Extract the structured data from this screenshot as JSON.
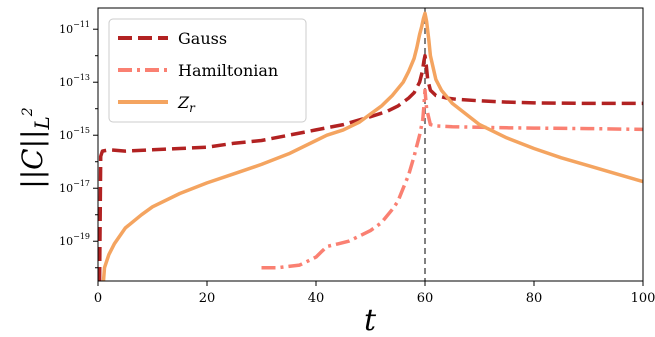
{
  "chart_data": {
    "type": "line",
    "xlabel": "t",
    "ylabel": "||C||",
    "ylabel_subscript": "L",
    "ylabel_superscript": "2",
    "xlim": [
      0,
      100
    ],
    "ylim_log10": [
      -20.5,
      -10.2
    ],
    "y_scale": "log",
    "x_ticks": [
      0,
      20,
      40,
      60,
      80,
      100
    ],
    "x_tick_labels": [
      "0",
      "20",
      "40",
      "60",
      "80",
      "100"
    ],
    "y_ticks_log10": [
      -19,
      -17,
      -15,
      -13,
      -11
    ],
    "y_tick_labels": [
      {
        "base": "10",
        "exp": "−19"
      },
      {
        "base": "10",
        "exp": "−17"
      },
      {
        "base": "10",
        "exp": "−15"
      },
      {
        "base": "10",
        "exp": "−13"
      },
      {
        "base": "10",
        "exp": "−11"
      }
    ],
    "vline": {
      "x": 60,
      "color": "#808080",
      "style": "dashed"
    },
    "legend_placement": "top-left",
    "series": [
      {
        "name": "Gauss",
        "color": "#b22222",
        "style": "dashed",
        "points": [
          [
            0.3,
            -20.5
          ],
          [
            0.4,
            -18.0
          ],
          [
            0.5,
            -15.8
          ],
          [
            0.8,
            -15.6
          ],
          [
            2,
            -15.55
          ],
          [
            5,
            -15.6
          ],
          [
            10,
            -15.55
          ],
          [
            15,
            -15.5
          ],
          [
            20,
            -15.45
          ],
          [
            25,
            -15.3
          ],
          [
            30,
            -15.2
          ],
          [
            35,
            -15.0
          ],
          [
            40,
            -14.8
          ],
          [
            45,
            -14.6
          ],
          [
            50,
            -14.3
          ],
          [
            53,
            -14.1
          ],
          [
            55,
            -13.9
          ],
          [
            57,
            -13.6
          ],
          [
            58,
            -13.4
          ],
          [
            59,
            -13.0
          ],
          [
            59.5,
            -12.6
          ],
          [
            59.8,
            -12.2
          ],
          [
            60,
            -12.0
          ],
          [
            60.2,
            -12.3
          ],
          [
            60.5,
            -12.9
          ],
          [
            61,
            -13.3
          ],
          [
            62,
            -13.5
          ],
          [
            64,
            -13.6
          ],
          [
            66,
            -13.65
          ],
          [
            70,
            -13.7
          ],
          [
            75,
            -13.75
          ],
          [
            80,
            -13.78
          ],
          [
            90,
            -13.8
          ],
          [
            100,
            -13.8
          ]
        ]
      },
      {
        "name": "Hamiltonian",
        "color": "#fa8072",
        "style": "dashdot",
        "points": [
          [
            30,
            -20.0
          ],
          [
            33,
            -20.0
          ],
          [
            35,
            -19.95
          ],
          [
            37,
            -19.9
          ],
          [
            38,
            -19.8
          ],
          [
            39,
            -19.7
          ],
          [
            40,
            -19.6
          ],
          [
            41,
            -19.4
          ],
          [
            42,
            -19.2
          ],
          [
            43,
            -19.15
          ],
          [
            44,
            -19.1
          ],
          [
            46,
            -19.0
          ],
          [
            48,
            -18.8
          ],
          [
            50,
            -18.6
          ],
          [
            52,
            -18.3
          ],
          [
            54,
            -17.8
          ],
          [
            55,
            -17.5
          ],
          [
            56,
            -17.0
          ],
          [
            57,
            -16.5
          ],
          [
            58,
            -15.8
          ],
          [
            58.5,
            -15.4
          ],
          [
            59,
            -15.0
          ],
          [
            59.3,
            -14.7
          ],
          [
            59.6,
            -14.4
          ],
          [
            59.8,
            -13.9
          ],
          [
            60,
            -13.3
          ],
          [
            60.3,
            -14.0
          ],
          [
            61,
            -14.6
          ],
          [
            62,
            -14.65
          ],
          [
            65,
            -14.68
          ],
          [
            70,
            -14.7
          ],
          [
            75,
            -14.72
          ],
          [
            80,
            -14.73
          ],
          [
            90,
            -14.75
          ],
          [
            100,
            -14.78
          ]
        ]
      },
      {
        "name": "Z_r",
        "label_base": "Z",
        "label_sub": "r",
        "color": "#f4a460",
        "style": "solid",
        "points": [
          [
            1,
            -20.5
          ],
          [
            1.2,
            -20.0
          ],
          [
            2,
            -19.5
          ],
          [
            3,
            -19.1
          ],
          [
            5,
            -18.5
          ],
          [
            8,
            -18.0
          ],
          [
            10,
            -17.7
          ],
          [
            15,
            -17.2
          ],
          [
            20,
            -16.8
          ],
          [
            25,
            -16.45
          ],
          [
            30,
            -16.1
          ],
          [
            35,
            -15.7
          ],
          [
            40,
            -15.2
          ],
          [
            42,
            -15.0
          ],
          [
            45,
            -14.8
          ],
          [
            48,
            -14.5
          ],
          [
            50,
            -14.2
          ],
          [
            52,
            -13.9
          ],
          [
            54,
            -13.5
          ],
          [
            56,
            -13.0
          ],
          [
            57,
            -12.6
          ],
          [
            58,
            -12.1
          ],
          [
            58.5,
            -11.7
          ],
          [
            59,
            -11.2
          ],
          [
            59.4,
            -10.9
          ],
          [
            59.7,
            -10.6
          ],
          [
            60,
            -10.4
          ],
          [
            60.3,
            -10.7
          ],
          [
            60.7,
            -11.4
          ],
          [
            61,
            -12.0
          ],
          [
            62,
            -12.9
          ],
          [
            63,
            -13.3
          ],
          [
            65,
            -13.8
          ],
          [
            70,
            -14.6
          ],
          [
            75,
            -15.1
          ],
          [
            80,
            -15.5
          ],
          [
            85,
            -15.85
          ],
          [
            90,
            -16.15
          ],
          [
            95,
            -16.45
          ],
          [
            100,
            -16.75
          ]
        ]
      }
    ]
  }
}
